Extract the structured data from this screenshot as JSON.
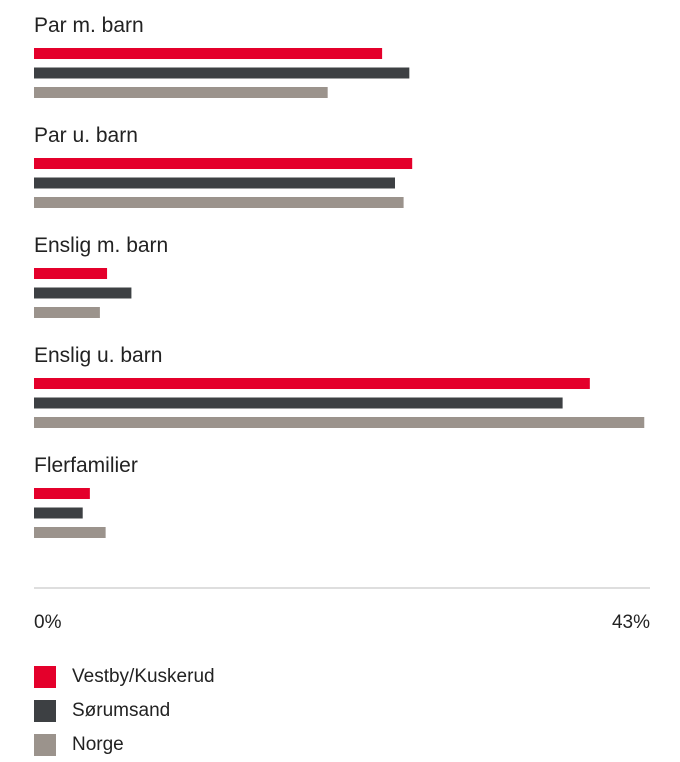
{
  "chart_data": {
    "type": "bar",
    "orientation": "horizontal",
    "categories": [
      "Par m. barn",
      "Par u. barn",
      "Enslig m. barn",
      "Enslig u. barn",
      "Flerfamilier"
    ],
    "series": [
      {
        "name": "Vestby/Kuskerud",
        "color": "#e4002b",
        "values": [
          24.3,
          26.4,
          5.1,
          38.8,
          3.9
        ]
      },
      {
        "name": "Sørumsand",
        "color": "#3d4043",
        "values": [
          26.2,
          25.2,
          6.8,
          36.9,
          3.4
        ]
      },
      {
        "name": "Norge",
        "color": "#9b938c",
        "values": [
          20.5,
          25.8,
          4.6,
          42.6,
          5.0
        ]
      }
    ],
    "xlim": [
      0,
      43
    ],
    "x_tick_labels": [
      "0%",
      "43%"
    ],
    "legend_position": "bottom-left",
    "grid": false
  }
}
